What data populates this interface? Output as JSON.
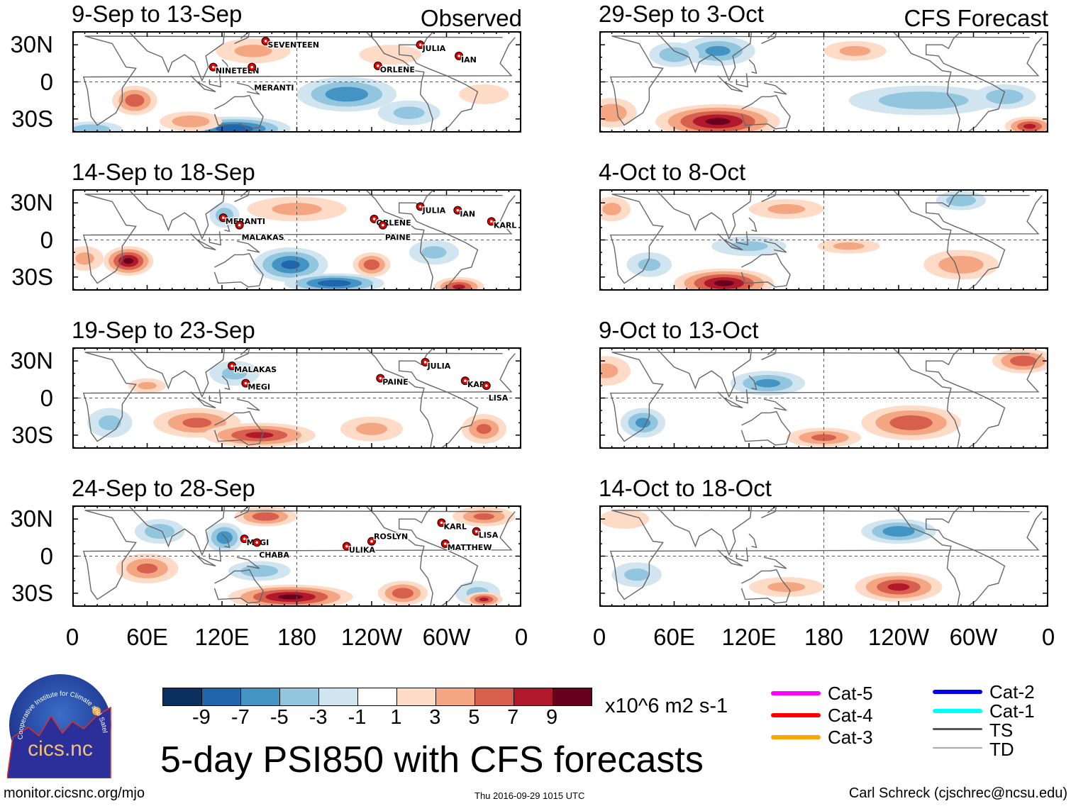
{
  "figure": {
    "title": "5-day PSI850 with CFS forecasts",
    "units": "x10^6 m2 s-1",
    "website": "monitor.cicsnc.org/mjo",
    "timestamp": "Thu 2016-09-29 1015 UTC",
    "author": "Carl Schreck (cjschrec@ncsu.edu)",
    "logo": {
      "text": "cics.nc",
      "ring_text": "Cooperative Institute for Climate and Satellites"
    },
    "observed_label": "Observed",
    "forecast_label": "CFS Forecast"
  },
  "axes": {
    "lat_labels": [
      "30N",
      "0",
      "30S"
    ],
    "lon_labels": [
      "0",
      "60E",
      "120E",
      "180",
      "120W",
      "60W",
      "0"
    ]
  },
  "colorbar": {
    "levels": [
      "-9",
      "-7",
      "-5",
      "-3",
      "-1",
      "1",
      "3",
      "5",
      "7",
      "9"
    ],
    "colors": [
      "#0b2f5e",
      "#2166ac",
      "#4393c3",
      "#92c5de",
      "#d1e5f0",
      "#ffffff",
      "#fddbc7",
      "#f4a582",
      "#d6604d",
      "#b2182b",
      "#67001f"
    ]
  },
  "legend": {
    "items": [
      {
        "label": "Cat-5",
        "color": "#ff00ff"
      },
      {
        "label": "Cat-4",
        "color": "#ff0000"
      },
      {
        "label": "Cat-3",
        "color": "#ffa500"
      },
      {
        "label": "Cat-2",
        "color": "#0000ee"
      },
      {
        "label": "Cat-1",
        "color": "#00ffff"
      },
      {
        "label": "TS",
        "color": "#555555"
      },
      {
        "label": "TD",
        "color": "#aaaaaa"
      }
    ]
  },
  "panels": [
    {
      "title": "9-Sep to 13-Sep",
      "column": "observed",
      "anomalies": [
        {
          "lon": 50,
          "lat": -15,
          "rlon": 18,
          "rlat": 12,
          "value": 6
        },
        {
          "lon": 130,
          "lat": -38,
          "rlon": 45,
          "rlat": 10,
          "value": -8
        },
        {
          "lon": 220,
          "lat": -10,
          "rlon": 40,
          "rlat": 14,
          "value": -6
        },
        {
          "lon": 145,
          "lat": 25,
          "rlon": 30,
          "rlat": 10,
          "value": 3
        },
        {
          "lon": 255,
          "lat": 22,
          "rlon": 25,
          "rlat": 8,
          "value": 2
        },
        {
          "lon": 15,
          "lat": -38,
          "rlon": 25,
          "rlat": 6,
          "value": -4
        },
        {
          "lon": 95,
          "lat": -32,
          "rlon": 25,
          "rlat": 8,
          "value": 4
        },
        {
          "lon": 270,
          "lat": -25,
          "rlon": 25,
          "rlat": 10,
          "value": -3
        },
        {
          "lon": 330,
          "lat": -10,
          "rlon": 20,
          "rlat": 8,
          "value": 2
        }
      ],
      "storms": [
        {
          "name": "SEVENTEEN",
          "lon": 155,
          "lat": 33
        },
        {
          "name": "NINETEEN",
          "lon": 113,
          "lat": 12
        },
        {
          "name": "MERANTI",
          "lon": 144,
          "lat": 12
        },
        {
          "name": "ORLENE",
          "lon": 245,
          "lat": 13
        },
        {
          "name": "JULIA",
          "lon": 279,
          "lat": 30
        },
        {
          "name": "IAN",
          "lon": 310,
          "lat": 21
        }
      ]
    },
    {
      "title": "29-Sep to 3-Oct",
      "column": "forecast",
      "anomalies": [
        {
          "lon": 95,
          "lat": -32,
          "rlon": 50,
          "rlat": 14,
          "value": 9
        },
        {
          "lon": 260,
          "lat": -15,
          "rlon": 60,
          "rlat": 12,
          "value": -4
        },
        {
          "lon": 95,
          "lat": 25,
          "rlon": 30,
          "rlat": 12,
          "value": -5
        },
        {
          "lon": 60,
          "lat": 22,
          "rlon": 20,
          "rlat": 10,
          "value": -4
        },
        {
          "lon": 205,
          "lat": 25,
          "rlon": 25,
          "rlat": 8,
          "value": 3
        },
        {
          "lon": 345,
          "lat": -36,
          "rlon": 20,
          "rlat": 8,
          "value": 7
        },
        {
          "lon": 325,
          "lat": -12,
          "rlon": 25,
          "rlat": 10,
          "value": -4
        },
        {
          "lon": 10,
          "lat": -25,
          "rlon": 20,
          "rlat": 12,
          "value": 4
        }
      ],
      "storms": []
    },
    {
      "title": "14-Sep to 18-Sep",
      "column": "observed",
      "anomalies": [
        {
          "lon": 45,
          "lat": -17,
          "rlon": 20,
          "rlat": 12,
          "value": 9
        },
        {
          "lon": 10,
          "lat": -15,
          "rlon": 15,
          "rlat": 10,
          "value": 3
        },
        {
          "lon": 175,
          "lat": -20,
          "rlon": 30,
          "rlat": 14,
          "value": -7
        },
        {
          "lon": 210,
          "lat": -35,
          "rlon": 40,
          "rlat": 8,
          "value": -8
        },
        {
          "lon": 240,
          "lat": -20,
          "rlon": 15,
          "rlat": 10,
          "value": 6
        },
        {
          "lon": 310,
          "lat": -38,
          "rlon": 20,
          "rlat": 8,
          "value": 7
        },
        {
          "lon": 180,
          "lat": 25,
          "rlon": 40,
          "rlat": 10,
          "value": 3
        },
        {
          "lon": 122,
          "lat": 20,
          "rlon": 12,
          "rlat": 10,
          "value": -4
        },
        {
          "lon": 290,
          "lat": -10,
          "rlon": 20,
          "rlat": 10,
          "value": -3
        }
      ],
      "storms": [
        {
          "name": "MERANTI",
          "lon": 121,
          "lat": 18
        },
        {
          "name": "MALAKAS",
          "lon": 134,
          "lat": 12
        },
        {
          "name": "ORLENE",
          "lon": 242,
          "lat": 17
        },
        {
          "name": "PAINE",
          "lon": 249,
          "lat": 12
        },
        {
          "name": "JULIA",
          "lon": 279,
          "lat": 27
        },
        {
          "name": "IAN",
          "lon": 309,
          "lat": 24
        },
        {
          "name": "KARL",
          "lon": 336,
          "lat": 15
        }
      ]
    },
    {
      "title": "4-Oct to 8-Oct",
      "column": "forecast",
      "anomalies": [
        {
          "lon": 100,
          "lat": -35,
          "rlon": 40,
          "rlat": 12,
          "value": 9
        },
        {
          "lon": 290,
          "lat": -20,
          "rlon": 30,
          "rlat": 12,
          "value": 4
        },
        {
          "lon": 120,
          "lat": -5,
          "rlon": 30,
          "rlat": 8,
          "value": -3
        },
        {
          "lon": 150,
          "lat": 25,
          "rlon": 30,
          "rlat": 8,
          "value": 3
        },
        {
          "lon": 290,
          "lat": 32,
          "rlon": 20,
          "rlat": 8,
          "value": -4
        },
        {
          "lon": 10,
          "lat": 25,
          "rlon": 15,
          "rlat": 10,
          "value": 3
        },
        {
          "lon": 200,
          "lat": -5,
          "rlon": 25,
          "rlat": 6,
          "value": 3
        },
        {
          "lon": 40,
          "lat": -20,
          "rlon": 18,
          "rlat": 10,
          "value": -3
        }
      ],
      "storms": []
    },
    {
      "title": "19-Sep to 23-Sep",
      "column": "observed",
      "anomalies": [
        {
          "lon": 100,
          "lat": -20,
          "rlon": 35,
          "rlat": 12,
          "value": 5
        },
        {
          "lon": 150,
          "lat": -30,
          "rlon": 45,
          "rlat": 10,
          "value": 7
        },
        {
          "lon": 240,
          "lat": -25,
          "rlon": 25,
          "rlat": 10,
          "value": 3
        },
        {
          "lon": 330,
          "lat": -25,
          "rlon": 18,
          "rlat": 12,
          "value": 5
        },
        {
          "lon": 30,
          "lat": -20,
          "rlon": 18,
          "rlat": 12,
          "value": -3
        },
        {
          "lon": 130,
          "lat": 20,
          "rlon": 20,
          "rlat": 10,
          "value": -3
        },
        {
          "lon": 60,
          "lat": 10,
          "rlon": 15,
          "rlat": 6,
          "value": 3
        }
      ],
      "storms": [
        {
          "name": "MALAKAS",
          "lon": 128,
          "lat": 26
        },
        {
          "name": "MEGI",
          "lon": 139,
          "lat": 12
        },
        {
          "name": "PAINE",
          "lon": 247,
          "lat": 16
        },
        {
          "name": "JULIA",
          "lon": 283,
          "lat": 29
        },
        {
          "name": "KARL",
          "lon": 315,
          "lat": 14
        },
        {
          "name": "LISA",
          "lon": 332,
          "lat": 10
        }
      ]
    },
    {
      "title": "9-Oct to 13-Oct",
      "column": "forecast",
      "anomalies": [
        {
          "lon": 135,
          "lat": 12,
          "rlon": 30,
          "rlat": 10,
          "value": -5
        },
        {
          "lon": 250,
          "lat": -20,
          "rlon": 40,
          "rlat": 14,
          "value": 6
        },
        {
          "lon": 340,
          "lat": 30,
          "rlon": 25,
          "rlat": 10,
          "value": 6
        },
        {
          "lon": 35,
          "lat": -20,
          "rlon": 18,
          "rlat": 12,
          "value": -5
        },
        {
          "lon": 5,
          "lat": 22,
          "rlon": 20,
          "rlat": 12,
          "value": 3
        },
        {
          "lon": 180,
          "lat": -32,
          "rlon": 30,
          "rlat": 8,
          "value": 5
        }
      ],
      "storms": []
    },
    {
      "title": "24-Sep to 28-Sep",
      "column": "observed",
      "anomalies": [
        {
          "lon": 175,
          "lat": -33,
          "rlon": 50,
          "rlat": 10,
          "value": 9
        },
        {
          "lon": 60,
          "lat": -10,
          "rlon": 25,
          "rlat": 12,
          "value": 5
        },
        {
          "lon": 265,
          "lat": -30,
          "rlon": 20,
          "rlat": 10,
          "value": 6
        },
        {
          "lon": 150,
          "lat": -12,
          "rlon": 25,
          "rlat": 8,
          "value": -4
        },
        {
          "lon": 155,
          "lat": 32,
          "rlon": 25,
          "rlat": 8,
          "value": 6
        },
        {
          "lon": 70,
          "lat": 20,
          "rlon": 20,
          "rlat": 10,
          "value": -4
        },
        {
          "lon": 122,
          "lat": 15,
          "rlon": 15,
          "rlat": 12,
          "value": -6
        },
        {
          "lon": 330,
          "lat": 32,
          "rlon": 25,
          "rlat": 8,
          "value": 5
        },
        {
          "lon": 325,
          "lat": -30,
          "rlon": 18,
          "rlat": 10,
          "value": -3
        },
        {
          "lon": 330,
          "lat": -35,
          "rlon": 15,
          "rlat": 6,
          "value": 7
        }
      ],
      "storms": [
        {
          "name": "MEGI",
          "lon": 138,
          "lat": 14
        },
        {
          "name": "CHABA",
          "lon": 148,
          "lat": 11
        },
        {
          "name": "ULIKA",
          "lon": 220,
          "lat": 8
        },
        {
          "name": "ROSLYN",
          "lon": 240,
          "lat": 12
        },
        {
          "name": "KARL",
          "lon": 296,
          "lat": 27
        },
        {
          "name": "LISA",
          "lon": 324,
          "lat": 20
        },
        {
          "name": "MATTHEW",
          "lon": 299,
          "lat": 10
        }
      ]
    },
    {
      "title": "14-Oct to 18-Oct",
      "column": "forecast",
      "anomalies": [
        {
          "lon": 240,
          "lat": 20,
          "rlon": 30,
          "rlat": 10,
          "value": -6
        },
        {
          "lon": 240,
          "lat": -25,
          "rlon": 35,
          "rlat": 12,
          "value": 7
        },
        {
          "lon": 150,
          "lat": -25,
          "rlon": 30,
          "rlat": 8,
          "value": 3
        },
        {
          "lon": 30,
          "lat": -15,
          "rlon": 20,
          "rlat": 10,
          "value": -3
        },
        {
          "lon": 20,
          "lat": 30,
          "rlon": 20,
          "rlat": 8,
          "value": 2
        }
      ],
      "storms": []
    }
  ]
}
